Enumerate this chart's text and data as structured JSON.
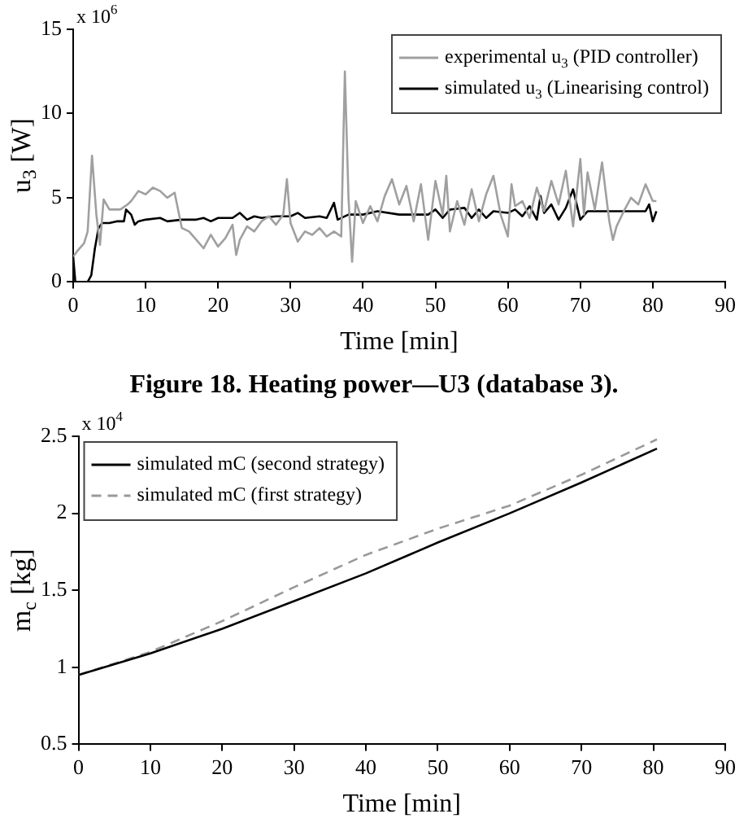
{
  "chart_data": [
    {
      "type": "line",
      "xlabel": "Time [min]",
      "ylabel": "u$_{3}$ [W]",
      "xlim": [
        0,
        90
      ],
      "xticks": [
        0,
        10,
        20,
        30,
        40,
        50,
        60,
        70,
        80,
        90
      ],
      "ylim": [
        0,
        15
      ],
      "yticks": [
        0,
        5,
        10,
        15
      ],
      "grid": false,
      "legend": "top right",
      "marker": "none",
      "annotations": [
        "x 10$^{6}$",
        "Figure 18. Heating power—U3 (database 3)."
      ],
      "series": [
        {
          "name": "experimental u$_{3}$ (PID controller)",
          "color": "#a0a0a0",
          "x": [
            0,
            0.5,
            1.5,
            2,
            2.6,
            3.2,
            3.7,
            4.2,
            5,
            6.5,
            7.5,
            8,
            9,
            10,
            11,
            12,
            13,
            14,
            15,
            16,
            17,
            18,
            19,
            20,
            21,
            22,
            22.5,
            23,
            24,
            25,
            26,
            27,
            28,
            29,
            29.5,
            30,
            31,
            32,
            33,
            34,
            35,
            36,
            37,
            37.5,
            38,
            38.5,
            39,
            40,
            41,
            42,
            43,
            44,
            45,
            46,
            47,
            48,
            49,
            50,
            51,
            51.5,
            52,
            53,
            54,
            55,
            56,
            57,
            58,
            59,
            60,
            60.5,
            61,
            62,
            63,
            64,
            65,
            66,
            67,
            68,
            69,
            70,
            70.5,
            71,
            72,
            73,
            74,
            74.5,
            75,
            76,
            77,
            78,
            79,
            80,
            80.5
          ],
          "values": [
            1.5,
            1.8,
            2.3,
            3,
            7.5,
            4,
            2.2,
            4.9,
            4.3,
            4.3,
            4.6,
            4.8,
            5.4,
            5.2,
            5.6,
            5.4,
            5,
            5.3,
            3.2,
            3,
            2.5,
            2,
            2.8,
            2.1,
            2.6,
            3.4,
            1.6,
            2.5,
            3.3,
            3,
            3.6,
            3.9,
            3.4,
            4,
            6.1,
            3.5,
            2.4,
            3,
            2.8,
            3.2,
            2.7,
            3,
            2.7,
            12.5,
            5,
            1.2,
            4.8,
            3.5,
            4.5,
            3.6,
            5.1,
            6.1,
            4.6,
            5.7,
            3.6,
            5.8,
            2.5,
            6,
            4,
            6.3,
            3,
            4.8,
            3.4,
            5.5,
            3.6,
            5.2,
            6.3,
            4,
            2.7,
            5.8,
            4.5,
            4.8,
            3.8,
            5.6,
            4.2,
            6,
            4.6,
            6.6,
            3.3,
            7.3,
            4,
            6.5,
            4.3,
            7.1,
            3.6,
            2.5,
            3.3,
            4.2,
            5,
            4.6,
            5.8,
            4.8,
            4.8
          ]
        },
        {
          "name": "simulated u$_{3}$ (Linearising control)",
          "color": "#000000",
          "x": [
            0,
            0.3,
            2,
            2.5,
            3,
            3.5,
            4,
            5,
            6,
            7,
            7.3,
            8,
            8.5,
            9,
            10,
            12,
            13,
            15,
            17,
            18,
            19,
            20,
            22,
            23,
            24,
            25,
            26,
            28,
            30,
            31,
            32,
            34,
            35,
            36,
            36.5,
            38,
            40,
            42,
            45,
            49,
            50,
            51,
            52,
            54,
            55,
            56,
            57,
            58,
            60,
            61,
            62,
            63,
            64,
            64.5,
            65,
            66,
            67,
            68,
            69,
            70,
            71,
            72,
            75,
            79,
            79.5,
            80,
            80.5
          ],
          "values": [
            1.5,
            0,
            0,
            0.4,
            2,
            3.2,
            3.5,
            3.5,
            3.6,
            3.6,
            4.3,
            4,
            3.4,
            3.6,
            3.7,
            3.8,
            3.6,
            3.7,
            3.7,
            3.8,
            3.6,
            3.8,
            3.8,
            4.1,
            3.7,
            3.9,
            3.8,
            3.9,
            3.9,
            4.1,
            3.8,
            3.9,
            3.8,
            4.7,
            3.7,
            4,
            4,
            4.2,
            4,
            4,
            4.3,
            3.8,
            4.3,
            4.4,
            3.8,
            4.3,
            3.8,
            4.2,
            4.1,
            4.3,
            3.9,
            4.5,
            3.7,
            5.1,
            4.1,
            4.6,
            3.7,
            4.4,
            5.5,
            3.7,
            4.2,
            4.2,
            4.2,
            4.2,
            4.6,
            3.6,
            4.2
          ]
        }
      ]
    },
    {
      "type": "line",
      "xlabel": "Time [min]",
      "ylabel": "m$_{c}$ [kg]",
      "xlim": [
        0,
        90
      ],
      "xticks": [
        0,
        10,
        20,
        30,
        40,
        50,
        60,
        70,
        80,
        90
      ],
      "ylim": [
        0.5,
        2.5
      ],
      "yticks": [
        0.5,
        1,
        1.5,
        2,
        2.5
      ],
      "grid": false,
      "legend": "top left",
      "marker": "none",
      "annotations": [
        "x 10$^{4}$"
      ],
      "x": [
        0,
        10,
        20,
        30,
        40,
        50,
        60,
        70,
        80.5
      ],
      "series": [
        {
          "name": "simulated mC (second strategy)",
          "color": "#000000",
          "line_style": "solid",
          "values": [
            0.95,
            1.09,
            1.25,
            1.43,
            1.61,
            1.81,
            2,
            2.2,
            2.42
          ]
        },
        {
          "name": "simulated mC (first strategy)",
          "color": "#999999",
          "line_style": "dashed",
          "values": [
            0.95,
            1.1,
            1.3,
            1.52,
            1.73,
            1.9,
            2.05,
            2.25,
            2.48
          ]
        }
      ]
    }
  ]
}
